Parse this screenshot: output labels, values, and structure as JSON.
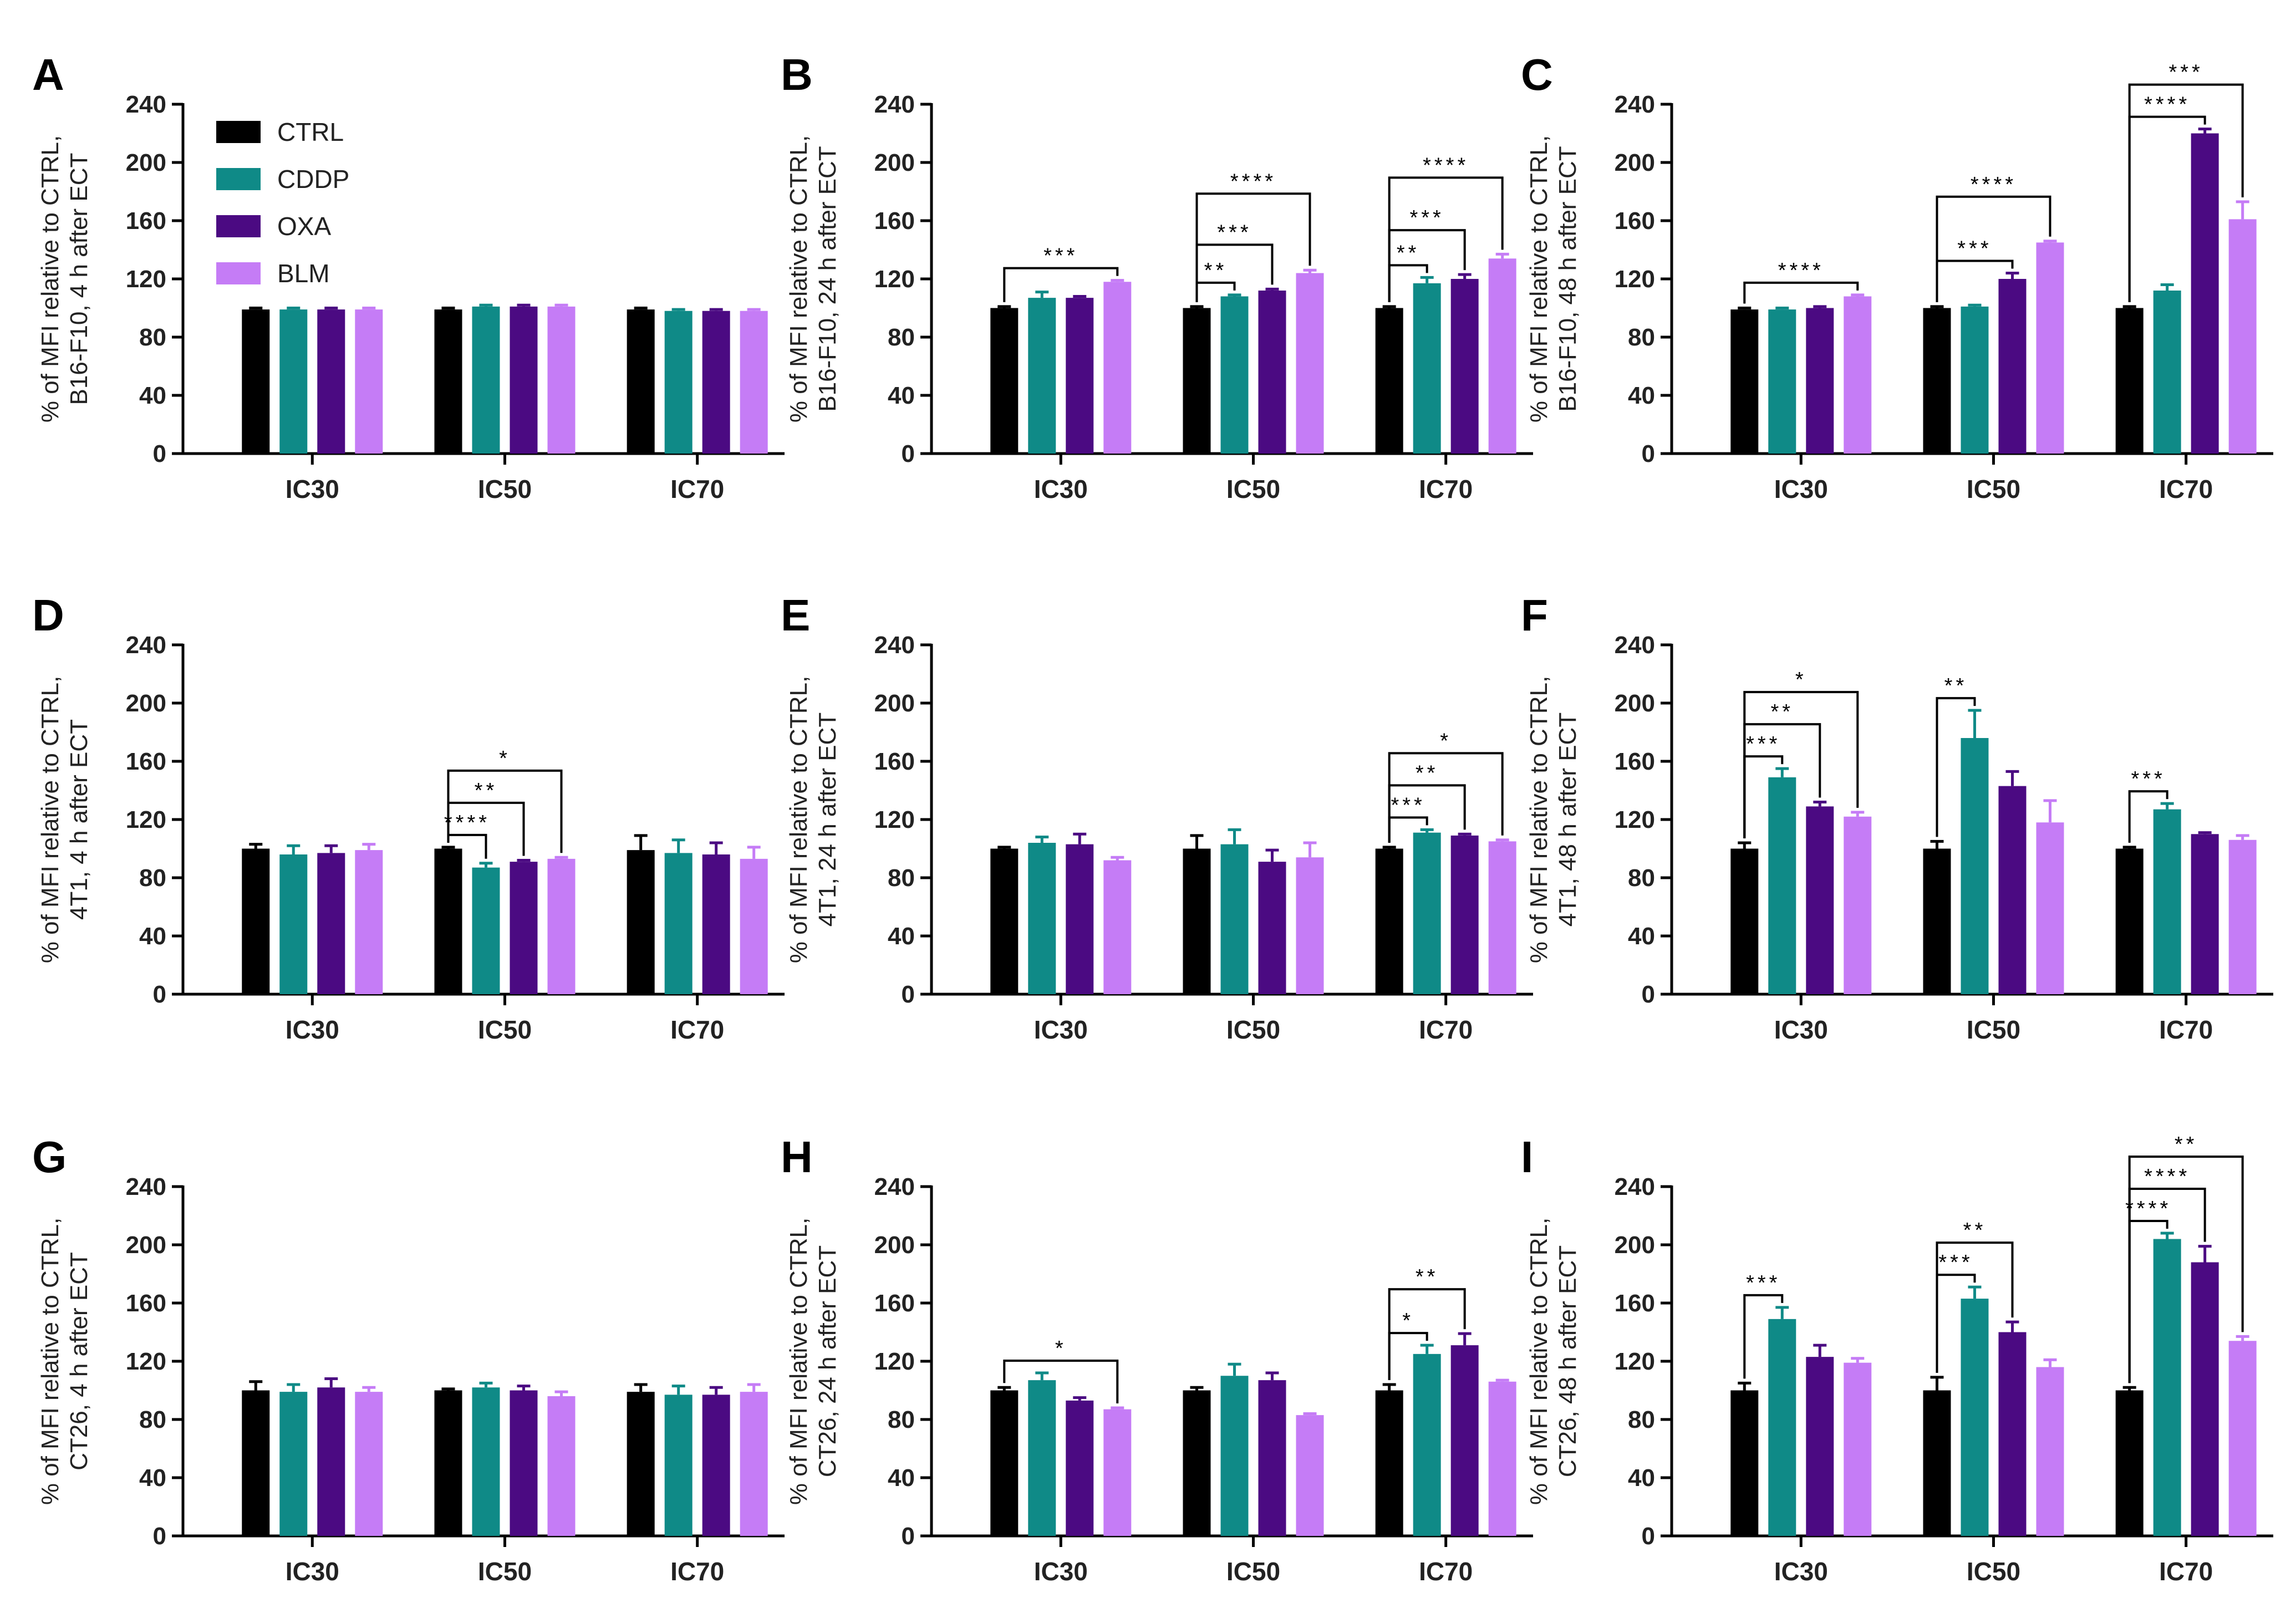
{
  "chart_data": {
    "type": "bar",
    "categories": [
      "IC30",
      "IC50",
      "IC70"
    ],
    "ylim": [
      0,
      240
    ],
    "yticks": [
      0,
      40,
      80,
      120,
      160,
      200,
      240
    ],
    "legend": {
      "position": "top-left (panel A)",
      "entries": [
        {
          "name": "CTRL",
          "color": "#000000"
        },
        {
          "name": "CDDP",
          "color": "#0f8a87"
        },
        {
          "name": "OXA",
          "color": "#4b0a82"
        },
        {
          "name": "BLM",
          "color": "#c57cf6"
        }
      ]
    },
    "panels": [
      {
        "letter": "A",
        "ylabel_line1": "% of MFI relative to CTRL,",
        "ylabel_line2": "B16-F10, 4 h after ECT",
        "series": [
          {
            "name": "CTRL",
            "values": [
              99,
              99,
              99
            ],
            "errors": [
              1,
              1,
              1
            ]
          },
          {
            "name": "CDDP",
            "values": [
              99,
              101,
              98
            ],
            "errors": [
              1,
              1,
              1
            ]
          },
          {
            "name": "OXA",
            "values": [
              99,
              101,
              98
            ],
            "errors": [
              1,
              1,
              1
            ]
          },
          {
            "name": "BLM",
            "values": [
              99,
              101,
              98
            ],
            "errors": [
              1,
              1,
              1
            ]
          }
        ],
        "annotations": []
      },
      {
        "letter": "B",
        "ylabel_line1": "% of MFI relative to CTRL,",
        "ylabel_line2": "B16-F10, 24 h after ECT",
        "series": [
          {
            "name": "CTRL",
            "values": [
              100,
              100,
              100
            ],
            "errors": [
              1,
              1,
              1
            ]
          },
          {
            "name": "CDDP",
            "values": [
              107,
              108,
              117
            ],
            "errors": [
              4,
              1,
              4
            ]
          },
          {
            "name": "OXA",
            "values": [
              107,
              112,
              120
            ],
            "errors": [
              1,
              1,
              3
            ]
          },
          {
            "name": "BLM",
            "values": [
              118,
              124,
              134
            ],
            "errors": [
              1,
              2,
              3
            ]
          }
        ],
        "annotations": [
          {
            "group": 0,
            "to": 3,
            "label": "***",
            "level": 1
          },
          {
            "group": 1,
            "to": 1,
            "label": "**",
            "level": 1
          },
          {
            "group": 1,
            "to": 2,
            "label": "***",
            "level": 2
          },
          {
            "group": 1,
            "to": 3,
            "label": "****",
            "level": 3
          },
          {
            "group": 2,
            "to": 1,
            "label": "**",
            "level": 1
          },
          {
            "group": 2,
            "to": 2,
            "label": "***",
            "level": 2
          },
          {
            "group": 2,
            "to": 3,
            "label": "****",
            "level": 3
          }
        ]
      },
      {
        "letter": "C",
        "ylabel_line1": "% of MFI relative to CTRL,",
        "ylabel_line2": "B16-F10, 48 h after ECT",
        "series": [
          {
            "name": "CTRL",
            "values": [
              99,
              100,
              100
            ],
            "errors": [
              1,
              1,
              1
            ]
          },
          {
            "name": "CDDP",
            "values": [
              99,
              101,
              112
            ],
            "errors": [
              1,
              1,
              4
            ]
          },
          {
            "name": "OXA",
            "values": [
              100,
              120,
              220
            ],
            "errors": [
              1,
              4,
              3
            ]
          },
          {
            "name": "BLM",
            "values": [
              108,
              145,
              161
            ],
            "errors": [
              1,
              1,
              12
            ]
          }
        ],
        "annotations": [
          {
            "group": 0,
            "to": 3,
            "label": "****",
            "level": 1
          },
          {
            "group": 1,
            "to": 2,
            "label": "***",
            "level": 1
          },
          {
            "group": 1,
            "to": 3,
            "label": "****",
            "level": 2
          },
          {
            "group": 2,
            "to": 2,
            "label": "****",
            "level": 1
          },
          {
            "group": 2,
            "to": 3,
            "label": "***",
            "level": 2
          }
        ]
      },
      {
        "letter": "D",
        "ylabel_line1": "% of MFI relative to CTRL,",
        "ylabel_line2": "4T1, 4 h after ECT",
        "series": [
          {
            "name": "CTRL",
            "values": [
              100,
              100,
              99
            ],
            "errors": [
              3,
              1,
              10
            ]
          },
          {
            "name": "CDDP",
            "values": [
              96,
              87,
              97
            ],
            "errors": [
              6,
              3,
              9
            ]
          },
          {
            "name": "OXA",
            "values": [
              97,
              91,
              96
            ],
            "errors": [
              5,
              1,
              8
            ]
          },
          {
            "name": "BLM",
            "values": [
              99,
              93,
              93
            ],
            "errors": [
              4,
              1,
              8
            ]
          }
        ],
        "annotations": [
          {
            "group": 1,
            "to": 1,
            "label": "****",
            "level": 1
          },
          {
            "group": 1,
            "to": 2,
            "label": "**",
            "level": 2
          },
          {
            "group": 1,
            "to": 3,
            "label": "*",
            "level": 3
          }
        ]
      },
      {
        "letter": "E",
        "ylabel_line1": "% of MFI relative to CTRL,",
        "ylabel_line2": "4T1, 24 h after ECT",
        "series": [
          {
            "name": "CTRL",
            "values": [
              100,
              100,
              100
            ],
            "errors": [
              1,
              9,
              1
            ]
          },
          {
            "name": "CDDP",
            "values": [
              104,
              103,
              111
            ],
            "errors": [
              4,
              10,
              2
            ]
          },
          {
            "name": "OXA",
            "values": [
              103,
              91,
              109
            ],
            "errors": [
              7,
              8,
              1
            ]
          },
          {
            "name": "BLM",
            "values": [
              92,
              94,
              105
            ],
            "errors": [
              2,
              10,
              1
            ]
          }
        ],
        "annotations": [
          {
            "group": 2,
            "to": 1,
            "label": "***",
            "level": 1
          },
          {
            "group": 2,
            "to": 2,
            "label": "**",
            "level": 2
          },
          {
            "group": 2,
            "to": 3,
            "label": "*",
            "level": 3
          }
        ]
      },
      {
        "letter": "F",
        "ylabel_line1": "% of MFI relative to CTRL,",
        "ylabel_line2": "4T1, 48 h after ECT",
        "series": [
          {
            "name": "CTRL",
            "values": [
              100,
              100,
              100
            ],
            "errors": [
              4,
              5,
              1
            ]
          },
          {
            "name": "CDDP",
            "values": [
              149,
              176,
              127
            ],
            "errors": [
              6,
              19,
              4
            ]
          },
          {
            "name": "OXA",
            "values": [
              129,
              143,
              110
            ],
            "errors": [
              3,
              10,
              1
            ]
          },
          {
            "name": "BLM",
            "values": [
              122,
              118,
              106
            ],
            "errors": [
              3,
              15,
              3
            ]
          }
        ],
        "annotations": [
          {
            "group": 0,
            "to": 1,
            "label": "***",
            "level": 1
          },
          {
            "group": 0,
            "to": 2,
            "label": "**",
            "level": 2
          },
          {
            "group": 0,
            "to": 3,
            "label": "*",
            "level": 3
          },
          {
            "group": 1,
            "to": 1,
            "label": "**",
            "level": 1
          },
          {
            "group": 2,
            "to": 1,
            "label": "***",
            "level": 1
          }
        ]
      },
      {
        "letter": "G",
        "ylabel_line1": "% of MFI relative to CTRL,",
        "ylabel_line2": "CT26, 4 h after ECT",
        "series": [
          {
            "name": "CTRL",
            "values": [
              100,
              100,
              99
            ],
            "errors": [
              6,
              1,
              5
            ]
          },
          {
            "name": "CDDP",
            "values": [
              99,
              102,
              97
            ],
            "errors": [
              5,
              3,
              6
            ]
          },
          {
            "name": "OXA",
            "values": [
              102,
              100,
              97
            ],
            "errors": [
              6,
              3,
              5
            ]
          },
          {
            "name": "BLM",
            "values": [
              99,
              96,
              99
            ],
            "errors": [
              3,
              3,
              5
            ]
          }
        ],
        "annotations": []
      },
      {
        "letter": "H",
        "ylabel_line1": "% of MFI relative to CTRL,",
        "ylabel_line2": "CT26, 24 h after ECT",
        "series": [
          {
            "name": "CTRL",
            "values": [
              100,
              100,
              100
            ],
            "errors": [
              2,
              2,
              4
            ]
          },
          {
            "name": "CDDP",
            "values": [
              107,
              110,
              125
            ],
            "errors": [
              5,
              8,
              6
            ]
          },
          {
            "name": "OXA",
            "values": [
              93,
              107,
              131
            ],
            "errors": [
              2,
              5,
              8
            ]
          },
          {
            "name": "BLM",
            "values": [
              87,
              83,
              106
            ],
            "errors": [
              1,
              1,
              1
            ]
          }
        ],
        "annotations": [
          {
            "group": 0,
            "to": 3,
            "label": "*",
            "level": 1
          },
          {
            "group": 2,
            "to": 1,
            "label": "*",
            "level": 1
          },
          {
            "group": 2,
            "to": 2,
            "label": "**",
            "level": 2
          }
        ]
      },
      {
        "letter": "I",
        "ylabel_line1": "% of MFI relative to CTRL,",
        "ylabel_line2": "CT26, 48 h after ECT",
        "series": [
          {
            "name": "CTRL",
            "values": [
              100,
              100,
              100
            ],
            "errors": [
              5,
              9,
              2
            ]
          },
          {
            "name": "CDDP",
            "values": [
              149,
              163,
              204
            ],
            "errors": [
              8,
              8,
              4
            ]
          },
          {
            "name": "OXA",
            "values": [
              123,
              140,
              188
            ],
            "errors": [
              8,
              7,
              11
            ]
          },
          {
            "name": "BLM",
            "values": [
              119,
              116,
              134
            ],
            "errors": [
              3,
              5,
              3
            ]
          }
        ],
        "annotations": [
          {
            "group": 0,
            "to": 1,
            "label": "***",
            "level": 1
          },
          {
            "group": 1,
            "to": 1,
            "label": "***",
            "level": 1
          },
          {
            "group": 1,
            "to": 2,
            "label": "**",
            "level": 2
          },
          {
            "group": 2,
            "to": 1,
            "label": "****",
            "level": 1
          },
          {
            "group": 2,
            "to": 2,
            "label": "****",
            "level": 2
          },
          {
            "group": 2,
            "to": 3,
            "label": "**",
            "level": 3
          }
        ]
      }
    ]
  }
}
